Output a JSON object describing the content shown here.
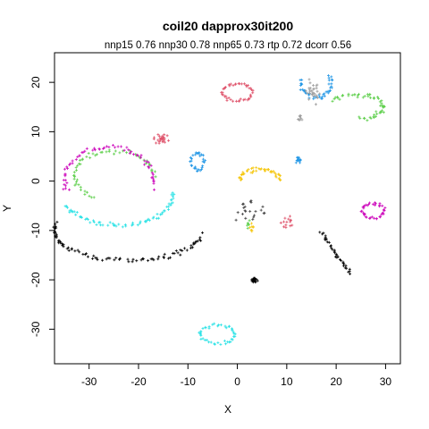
{
  "chart_data": {
    "type": "scatter",
    "title": "coil20 dapprox30it200",
    "subtitle": "nnp15 0.76 nnp30 0.78 nnp65 0.73 rtp 0.72 dcorr 0.56",
    "xlabel": "X",
    "ylabel": "Y",
    "xlim": [
      -37,
      33
    ],
    "ylim": [
      -37,
      26
    ],
    "xticks": [
      -30,
      -20,
      -10,
      0,
      10,
      20,
      30
    ],
    "yticks": [
      -30,
      -20,
      -10,
      0,
      10,
      20
    ],
    "marker": "+",
    "grid": false,
    "legend": "none",
    "clusters": [
      {
        "color": "#DF536B",
        "shape": "ring",
        "cx": 0,
        "cy": 18,
        "rx": 3,
        "ry": 1.8,
        "n": 45
      },
      {
        "color": "#DF536B",
        "shape": "blob",
        "cx": -15.5,
        "cy": 8.5,
        "rx": 1.3,
        "ry": 1.2,
        "n": 25
      },
      {
        "color": "#DF536B",
        "shape": "blob",
        "cx": 10,
        "cy": -8.5,
        "rx": 1.5,
        "ry": 1.5,
        "n": 14
      },
      {
        "color": "#2297E6",
        "shape": "arc",
        "cx": 16,
        "cy": 20,
        "rx": 3,
        "ry": 3,
        "t0": 2.9,
        "t1": 6.8,
        "n": 45
      },
      {
        "color": "#2297E6",
        "shape": "ring",
        "cx": -8,
        "cy": 4,
        "rx": 1.2,
        "ry": 1.8,
        "n": 30
      },
      {
        "color": "#2297E6",
        "shape": "blob",
        "cx": 12.3,
        "cy": 4.3,
        "rx": 0.5,
        "ry": 0.7,
        "n": 14
      },
      {
        "color": "#9E9E9E",
        "shape": "blob",
        "cx": 15.5,
        "cy": 18,
        "rx": 1.3,
        "ry": 2,
        "n": 28
      },
      {
        "color": "#9E9E9E",
        "shape": "blob",
        "cx": 12.7,
        "cy": 13,
        "rx": 0.6,
        "ry": 0.8,
        "n": 8
      },
      {
        "color": "#61D04F",
        "shape": "arc",
        "cx": 24,
        "cy": 15,
        "rx": 5.5,
        "ry": 2.5,
        "t0": -1.5,
        "t1": 2.6,
        "n": 55
      },
      {
        "color": "#61D04F",
        "shape": "arc",
        "cx": -25,
        "cy": 1,
        "rx": 8,
        "ry": 5,
        "t0": 0,
        "t1": 4.2,
        "n": 60
      },
      {
        "color": "#61D04F",
        "shape": "blob",
        "cx": 2.5,
        "cy": -8.5,
        "rx": 0.7,
        "ry": 1,
        "n": 6
      },
      {
        "color": "#CD0BBC",
        "shape": "arc",
        "cx": -26,
        "cy": 0,
        "rx": 9,
        "ry": 7,
        "t0": -0.2,
        "t1": 3.5,
        "n": 65
      },
      {
        "color": "#CD0BBC",
        "shape": "ring",
        "cx": 27.5,
        "cy": -6,
        "rx": 2.2,
        "ry": 1.5,
        "n": 40
      },
      {
        "color": "#28E2E5",
        "shape": "arc",
        "cx": -24,
        "cy": -3,
        "rx": 11,
        "ry": 6,
        "t0": 3.4,
        "t1": 6.4,
        "n": 70
      },
      {
        "color": "#28E2E5",
        "shape": "ring",
        "cx": -4,
        "cy": -31,
        "rx": 3.5,
        "ry": 1.8,
        "n": 45
      },
      {
        "color": "#F5C710",
        "shape": "arc",
        "cx": 4.5,
        "cy": 0,
        "rx": 4,
        "ry": 2.5,
        "t0": 0,
        "t1": 3.1,
        "n": 45
      },
      {
        "color": "#F5C710",
        "shape": "blob",
        "cx": 3,
        "cy": -9.5,
        "rx": 0.5,
        "ry": 0.7,
        "n": 8
      },
      {
        "color": "#000000",
        "shape": "arc",
        "cx": -22,
        "cy": -10,
        "rx": 15,
        "ry": 6,
        "t0": 2.9,
        "t1": 6.1,
        "n": 90
      },
      {
        "color": "#000000",
        "shape": "line",
        "x0": 17,
        "y0": -10.5,
        "x1": 23,
        "y1": -19,
        "n": 35
      },
      {
        "color": "#000000",
        "shape": "blob",
        "cx": 3.5,
        "cy": -20,
        "rx": 0.5,
        "ry": 0.4,
        "n": 25
      },
      {
        "color": "#444444",
        "shape": "blob",
        "cx": 3,
        "cy": -6,
        "rx": 3,
        "ry": 2.5,
        "n": 22
      }
    ]
  }
}
